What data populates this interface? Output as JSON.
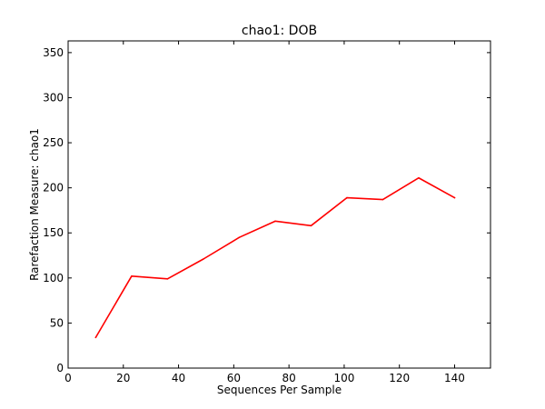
{
  "chart_data": {
    "type": "line",
    "title": "chao1: DOB",
    "xlabel": "Sequences Per Sample",
    "ylabel": "Rarefaction Measure: chao1",
    "xlim": [
      0,
      153
    ],
    "ylim": [
      0,
      363
    ],
    "xticks": [
      0,
      20,
      40,
      60,
      80,
      100,
      120,
      140
    ],
    "yticks": [
      0,
      50,
      100,
      150,
      200,
      250,
      300,
      350
    ],
    "grid": false,
    "series": [
      {
        "color": "#ff0000",
        "x": [
          10,
          23,
          36,
          49,
          62,
          75,
          88,
          101,
          114,
          127,
          140
        ],
        "y": [
          34,
          102,
          99,
          121,
          145,
          163,
          158,
          189,
          187,
          211,
          189
        ]
      }
    ]
  }
}
